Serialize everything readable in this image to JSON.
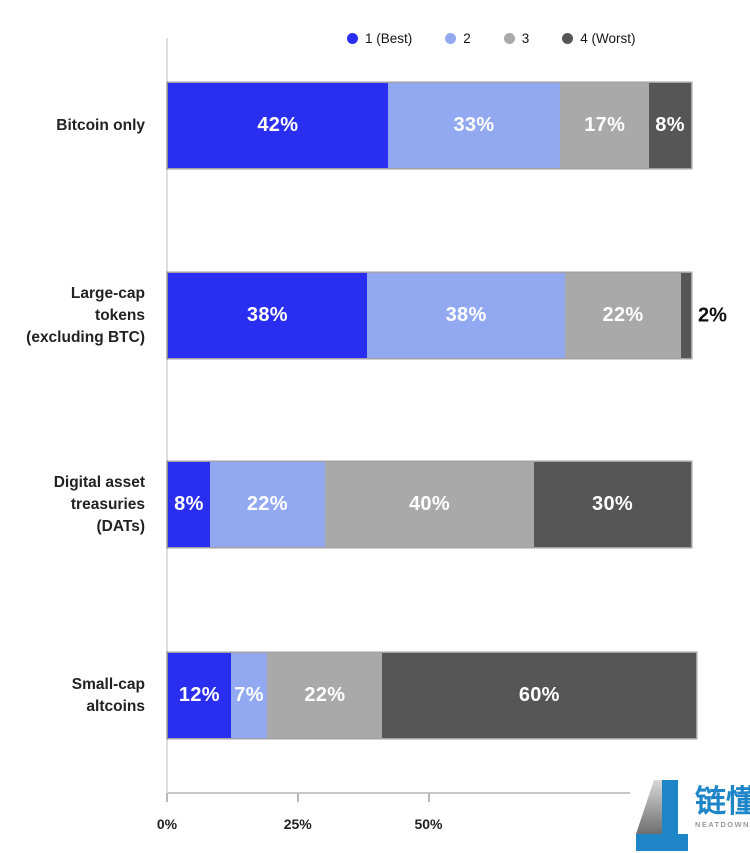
{
  "chart_data": {
    "type": "bar",
    "orientation": "horizontal",
    "stacked": true,
    "categories": [
      "Bitcoin only",
      "Large-cap\ntokens\n(excluding BTC)",
      "Digital asset\ntreasuries\n(DATs)",
      "Small-cap\naltcoins"
    ],
    "series": [
      {
        "name": "1 (Best)",
        "color": "#2a2ef0",
        "values": [
          42,
          38,
          8,
          12
        ]
      },
      {
        "name": "2",
        "color": "#92a9f1",
        "values": [
          33,
          38,
          22,
          7
        ]
      },
      {
        "name": "3",
        "color": "#a9a9a9",
        "values": [
          17,
          22,
          40,
          22
        ]
      },
      {
        "name": "4 (Worst)",
        "color": "#565656",
        "values": [
          8,
          2,
          30,
          60
        ]
      }
    ],
    "value_suffix": "%",
    "xlim": [
      0,
      100
    ],
    "x_ticks": [
      {
        "label": "0%",
        "value": 0
      },
      {
        "label": "25%",
        "value": 25
      },
      {
        "label": "50%",
        "value": 50
      }
    ],
    "grid": false,
    "legend_position": "top",
    "title": "",
    "xlabel": "",
    "ylabel": ""
  },
  "watermark": {
    "brand": "链懂",
    "site": "NEATDOWN.COM"
  }
}
